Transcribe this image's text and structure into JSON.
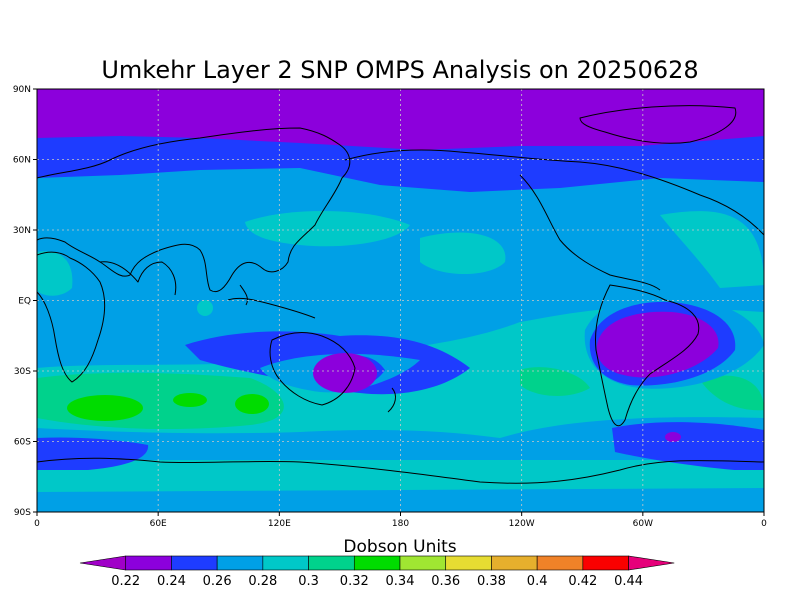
{
  "map": {
    "title": "Umkehr Layer 2 SNP OMPS Analysis on 20250628",
    "lat_ticks": [
      "90N",
      "60N",
      "30N",
      "EQ",
      "30S",
      "60S",
      "90S"
    ],
    "lon_ticks": [
      "0",
      "60E",
      "120E",
      "180",
      "120W",
      "60W",
      "0"
    ],
    "colorbar_title": "Dobson Units",
    "colorbar_levels": [
      "0.22",
      "0.24",
      "0.26",
      "0.28",
      "0.3",
      "0.32",
      "0.34",
      "0.36",
      "0.38",
      "0.4",
      "0.42",
      "0.44"
    ],
    "colorbar_colors": [
      "#a000c8",
      "#8c00dc",
      "#1e3cff",
      "#00a0e6",
      "#00c8c8",
      "#00d28c",
      "#00dc00",
      "#a0e632",
      "#e6dc32",
      "#e6af2d",
      "#f08228",
      "#fa0000",
      "#e6007a"
    ],
    "grid": true
  }
}
